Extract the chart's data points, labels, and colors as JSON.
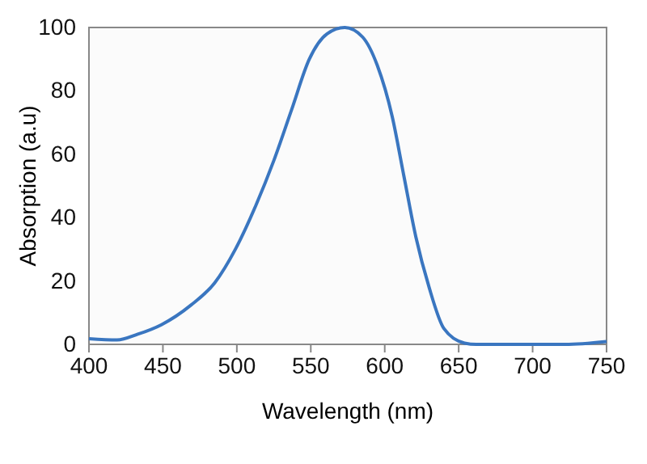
{
  "chart_data": {
    "type": "line",
    "xlabel": "Wavelength (nm)",
    "ylabel": "Absorption (a.u)",
    "x": [
      400,
      419,
      433,
      449,
      469,
      485,
      499,
      513,
      525,
      537,
      549,
      561,
      573,
      585,
      595,
      605,
      613,
      621,
      630,
      640,
      654,
      662,
      698,
      722,
      750
    ],
    "series": [
      {
        "color": "#3a76c0",
        "values": [
          1.8,
          1.4,
          3.2,
          6.2,
          12.4,
          19.4,
          30,
          44,
          58,
          74,
          90,
          98,
          100,
          97,
          88,
          72,
          53,
          34,
          18,
          5,
          0.4,
          0,
          0,
          0,
          0.9
        ]
      }
    ],
    "xlim": [
      400,
      750
    ],
    "xticks": [
      400,
      450,
      500,
      550,
      600,
      650,
      700,
      750
    ],
    "ylim": [
      0,
      100
    ],
    "yticks": [
      0,
      20,
      40,
      60,
      80,
      100
    ],
    "grid": false,
    "marker": "none",
    "line_style": "solid"
  }
}
